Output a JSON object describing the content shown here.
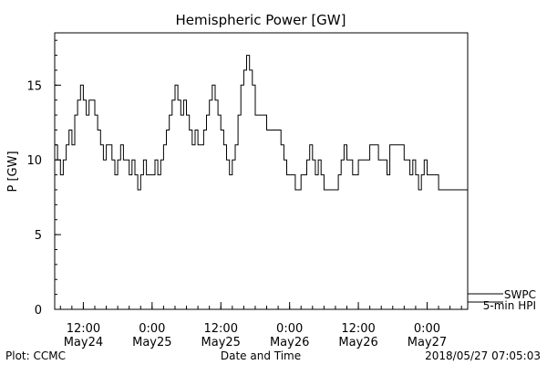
{
  "chart_data": {
    "type": "line",
    "title": "Hemispheric Power [GW]",
    "ylabel": "P [GW]",
    "xlabel": "Date and Time",
    "ylim": [
      0,
      18.5
    ],
    "y_ticks": [
      {
        "value": 0,
        "label": "0"
      },
      {
        "value": 5,
        "label": "5"
      },
      {
        "value": 10,
        "label": "10"
      },
      {
        "value": 15,
        "label": "15"
      }
    ],
    "y_minor_step": 1,
    "xlim": [
      "2018-05-24T07:00",
      "2018-05-27T07:05"
    ],
    "x_ticks": [
      {
        "x": "2018-05-24T12:00",
        "time": "12:00",
        "date": "May24"
      },
      {
        "x": "2018-05-25T00:00",
        "time": "0:00",
        "date": "May25"
      },
      {
        "x": "2018-05-25T12:00",
        "time": "12:00",
        "date": "May25"
      },
      {
        "x": "2018-05-26T00:00",
        "time": "0:00",
        "date": "May26"
      },
      {
        "x": "2018-05-26T12:00",
        "time": "12:00",
        "date": "May26"
      },
      {
        "x": "2018-05-27T00:00",
        "time": "0:00",
        "date": "May27"
      }
    ],
    "x_minor_step_hours": 2,
    "legend": {
      "placement": "bottom-right",
      "entries": [
        {
          "label": "SWPC",
          "style": "line"
        },
        {
          "label": "5-min HPI",
          "style": "bar"
        }
      ]
    },
    "series": [
      {
        "name": "SWPC",
        "step": true,
        "x": [
          "2018-05-24T07:00",
          "2018-05-24T07:30",
          "2018-05-24T08:00",
          "2018-05-24T08:30",
          "2018-05-24T09:00",
          "2018-05-24T09:30",
          "2018-05-24T10:00",
          "2018-05-24T10:30",
          "2018-05-24T11:00",
          "2018-05-24T11:30",
          "2018-05-24T12:00",
          "2018-05-24T12:30",
          "2018-05-24T13:00",
          "2018-05-24T14:00",
          "2018-05-24T14:30",
          "2018-05-24T15:00",
          "2018-05-24T15:30",
          "2018-05-24T16:00",
          "2018-05-24T17:00",
          "2018-05-24T17:30",
          "2018-05-24T18:00",
          "2018-05-24T18:30",
          "2018-05-24T19:00",
          "2018-05-24T20:00",
          "2018-05-24T20:30",
          "2018-05-24T21:00",
          "2018-05-24T21:30",
          "2018-05-24T22:00",
          "2018-05-24T22:30",
          "2018-05-24T23:00",
          "2018-05-25T00:00",
          "2018-05-25T00:30",
          "2018-05-25T01:00",
          "2018-05-25T01:30",
          "2018-05-25T02:00",
          "2018-05-25T02:30",
          "2018-05-25T03:00",
          "2018-05-25T03:30",
          "2018-05-25T04:00",
          "2018-05-25T04:30",
          "2018-05-25T05:00",
          "2018-05-25T05:30",
          "2018-05-25T06:00",
          "2018-05-25T06:30",
          "2018-05-25T07:00",
          "2018-05-25T07:30",
          "2018-05-25T08:00",
          "2018-05-25T09:00",
          "2018-05-25T09:30",
          "2018-05-25T10:00",
          "2018-05-25T10:30",
          "2018-05-25T11:00",
          "2018-05-25T11:30",
          "2018-05-25T12:00",
          "2018-05-25T12:30",
          "2018-05-25T13:00",
          "2018-05-25T13:30",
          "2018-05-25T14:00",
          "2018-05-25T14:30",
          "2018-05-25T15:00",
          "2018-05-25T15:30",
          "2018-05-25T16:00",
          "2018-05-25T16:30",
          "2018-05-25T17:00",
          "2018-05-25T17:30",
          "2018-05-25T18:00",
          "2018-05-25T20:00",
          "2018-05-25T22:30",
          "2018-05-25T23:00",
          "2018-05-25T23:30",
          "2018-05-26T00:00",
          "2018-05-26T01:00",
          "2018-05-26T02:00",
          "2018-05-26T03:00",
          "2018-05-26T03:30",
          "2018-05-26T04:00",
          "2018-05-26T04:30",
          "2018-05-26T05:00",
          "2018-05-26T05:30",
          "2018-05-26T06:00",
          "2018-05-26T08:30",
          "2018-05-26T09:00",
          "2018-05-26T09:30",
          "2018-05-26T10:00",
          "2018-05-26T11:00",
          "2018-05-26T12:00",
          "2018-05-26T14:00",
          "2018-05-26T15:30",
          "2018-05-26T17:00",
          "2018-05-26T17:30",
          "2018-05-26T20:00",
          "2018-05-26T21:00",
          "2018-05-26T21:30",
          "2018-05-26T22:00",
          "2018-05-26T22:30",
          "2018-05-26T23:00",
          "2018-05-26T23:30",
          "2018-05-27T00:00",
          "2018-05-27T02:00",
          "2018-05-27T07:05"
        ],
        "values": [
          11,
          10,
          9,
          10,
          11,
          12,
          11,
          13,
          14,
          15,
          14,
          13,
          14,
          13,
          12,
          11,
          10,
          11,
          10,
          9,
          10,
          11,
          10,
          9,
          10,
          9,
          8,
          9,
          10,
          9,
          9,
          10,
          9,
          10,
          11,
          12,
          13,
          14,
          15,
          14,
          13,
          14,
          13,
          12,
          11,
          12,
          11,
          12,
          13,
          14,
          15,
          14,
          13,
          12,
          11,
          10,
          9,
          10,
          11,
          13,
          15,
          16,
          17,
          16,
          15,
          13,
          12,
          11,
          10,
          9,
          9,
          8,
          9,
          10,
          11,
          10,
          9,
          10,
          9,
          8,
          9,
          10,
          11,
          10,
          9,
          10,
          11,
          10,
          9,
          11,
          10,
          9,
          10,
          9,
          8,
          9,
          10,
          9,
          8,
          8
        ]
      }
    ]
  },
  "footer": {
    "left": "Plot: CCMC",
    "right": "2018/05/27 07:05:03"
  }
}
